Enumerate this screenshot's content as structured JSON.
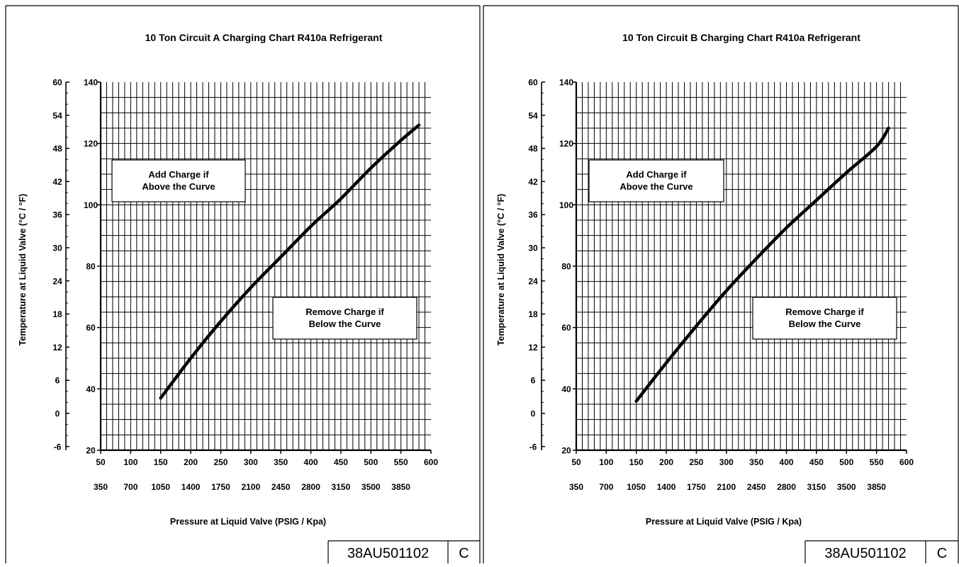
{
  "chart_data": [
    {
      "type": "line",
      "title": "10 Ton Circuit A Charging Chart R410a Refrigerant",
      "xlabel": "Pressure at Liquid Valve  (PSIG / Kpa)",
      "ylabel": "Temperature at Liquid Valve (°C / °F)",
      "x_primary_ticks": [
        "50",
        "100",
        "150",
        "200",
        "250",
        "300",
        "350",
        "400",
        "450",
        "500",
        "550",
        "600"
      ],
      "x_secondary_ticks": [
        "350",
        "700",
        "1050",
        "1400",
        "1750",
        "2100",
        "2450",
        "2800",
        "3150",
        "3500",
        "3850"
      ],
      "y_primary_ticks": [
        "20",
        "40",
        "60",
        "80",
        "100",
        "120",
        "140"
      ],
      "y_secondary_ticks": [
        "-6",
        "0",
        "6",
        "12",
        "18",
        "24",
        "30",
        "36",
        "42",
        "48",
        "54",
        "60"
      ],
      "xlim": [
        50,
        600
      ],
      "ylim": [
        20,
        140
      ],
      "grid": true,
      "series": [
        {
          "x": [
            150,
            200,
            250,
            300,
            350,
            400,
            450,
            500,
            550,
            580
          ],
          "y": [
            37,
            50,
            62,
            73,
            83,
            93,
            102,
            112,
            121,
            126
          ]
        }
      ],
      "annotations": {
        "add_charge": [
          "Add Charge if",
          "Above the Curve"
        ],
        "remove_charge": [
          "Remove Charge if",
          "Below the Curve"
        ]
      },
      "doc_number": "38AU501102",
      "revision": "C"
    },
    {
      "type": "line",
      "title": "10 Ton Circuit B Charging Chart R410a Refrigerant",
      "xlabel": "Pressure at Liquid Valve  (PSIG / Kpa)",
      "ylabel": "Temperature at Liquid Valve (°C / °F)",
      "x_primary_ticks": [
        "50",
        "100",
        "150",
        "200",
        "250",
        "300",
        "350",
        "400",
        "450",
        "500",
        "550",
        "600"
      ],
      "x_secondary_ticks": [
        "350",
        "700",
        "1050",
        "1400",
        "1750",
        "2100",
        "2450",
        "2800",
        "3150",
        "3500",
        "3850"
      ],
      "y_primary_ticks": [
        "20",
        "40",
        "60",
        "80",
        "100",
        "120",
        "140"
      ],
      "y_secondary_ticks": [
        "-6",
        "0",
        "6",
        "12",
        "18",
        "24",
        "30",
        "36",
        "42",
        "48",
        "54",
        "60"
      ],
      "xlim": [
        50,
        600
      ],
      "ylim": [
        20,
        140
      ],
      "grid": true,
      "series": [
        {
          "x": [
            150,
            200,
            250,
            300,
            350,
            400,
            450,
            500,
            550,
            570
          ],
          "y": [
            36,
            48.5,
            60.5,
            72,
            82.5,
            92.5,
            101.5,
            110.5,
            119,
            125
          ]
        }
      ],
      "annotations": {
        "add_charge": [
          "Add Charge if",
          "Above the Curve"
        ],
        "remove_charge": [
          "Remove Charge if",
          "Below the Curve"
        ]
      },
      "doc_number": "38AU501102",
      "revision": "C"
    }
  ]
}
